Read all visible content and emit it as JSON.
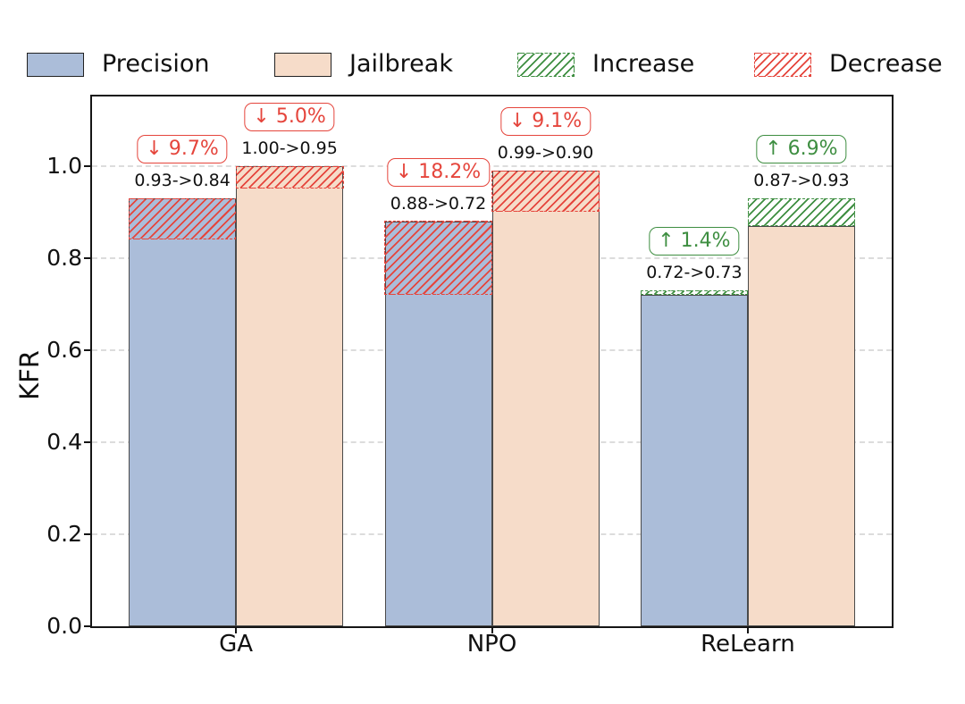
{
  "chart_data": {
    "type": "bar",
    "title": "",
    "ylabel": "KFR",
    "xlabel": "",
    "ylim": [
      0,
      1.15
    ],
    "yticks": [
      {
        "value": 0.0,
        "label": "0.0"
      },
      {
        "value": 0.2,
        "label": "0.2"
      },
      {
        "value": 0.4,
        "label": "0.4"
      },
      {
        "value": 0.6,
        "label": "0.6"
      },
      {
        "value": 0.8,
        "label": "0.8"
      },
      {
        "value": 1.0,
        "label": "1.0"
      }
    ],
    "grid": true,
    "legend_position": "top",
    "categories": [
      "GA",
      "NPO",
      "ReLearn"
    ],
    "series": [
      {
        "name": "Precision",
        "color": "#ABBDD9",
        "bars": [
          {
            "category": "GA",
            "old": 0.93,
            "new": 0.84,
            "direction": "decrease",
            "change_label": "↓ 9.7%",
            "value_label": "0.93->0.84"
          },
          {
            "category": "NPO",
            "old": 0.88,
            "new": 0.72,
            "direction": "decrease",
            "change_label": "↓ 18.2%",
            "value_label": "0.88->0.72"
          },
          {
            "category": "ReLearn",
            "old": 0.72,
            "new": 0.73,
            "direction": "increase",
            "change_label": "↑ 1.4%",
            "value_label": "0.72->0.73"
          }
        ]
      },
      {
        "name": "Jailbreak",
        "color": "#F6DCC9",
        "bars": [
          {
            "category": "GA",
            "old": 1.0,
            "new": 0.95,
            "direction": "decrease",
            "change_label": "↓ 5.0%",
            "value_label": "1.00->0.95"
          },
          {
            "category": "NPO",
            "old": 0.99,
            "new": 0.9,
            "direction": "decrease",
            "change_label": "↓ 9.1%",
            "value_label": "0.99->0.90"
          },
          {
            "category": "ReLearn",
            "old": 0.87,
            "new": 0.93,
            "direction": "increase",
            "change_label": "↑ 6.9%",
            "value_label": "0.87->0.93"
          }
        ]
      }
    ],
    "legend": [
      {
        "label": "Precision",
        "swatch": "fill",
        "color": "#ABBDD9"
      },
      {
        "label": "Jailbreak",
        "swatch": "fill",
        "color": "#F6DCC9"
      },
      {
        "label": "Increase",
        "swatch": "hatch",
        "color": "#3E8E41"
      },
      {
        "label": "Decrease",
        "swatch": "hatch",
        "color": "#E5453C"
      }
    ],
    "colors": {
      "increase": "#3E8E41",
      "decrease": "#E5453C",
      "bar_edge": "#4a4a4a",
      "grid": "#dcdcdc",
      "axis": "#151515"
    }
  }
}
